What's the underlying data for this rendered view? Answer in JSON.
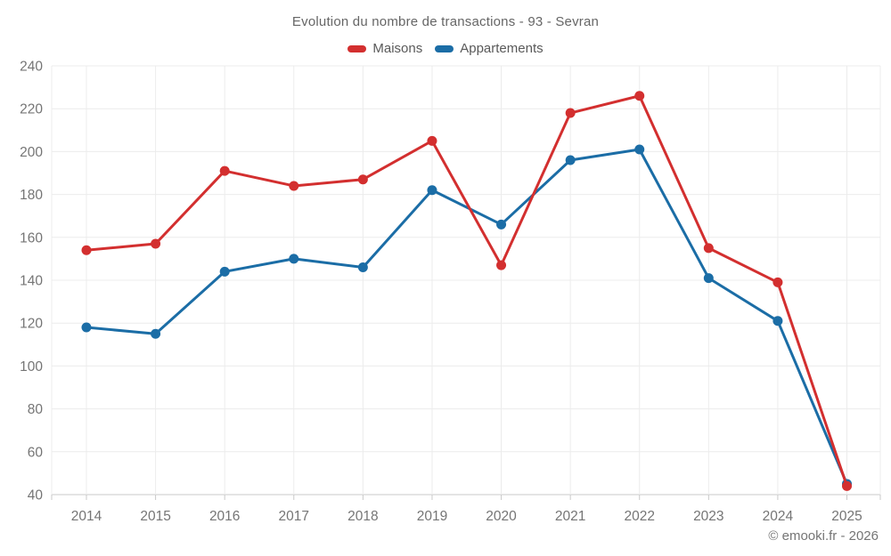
{
  "title": "Evolution du nombre de transactions - 93 - Sevran",
  "footer": "© emooki.fr - 2026",
  "chart_data": {
    "type": "line",
    "title": "Evolution du nombre de transactions - 93 - Sevran",
    "categories": [
      "2014",
      "2015",
      "2016",
      "2017",
      "2018",
      "2019",
      "2020",
      "2021",
      "2022",
      "2023",
      "2024",
      "2025"
    ],
    "series": [
      {
        "name": "Maisons",
        "color": "#d32f2f",
        "values": [
          154,
          157,
          191,
          184,
          187,
          205,
          147,
          218,
          226,
          155,
          139,
          44
        ]
      },
      {
        "name": "Appartements",
        "color": "#1b6da6",
        "values": [
          118,
          115,
          144,
          150,
          146,
          182,
          166,
          196,
          201,
          141,
          121,
          45
        ]
      }
    ],
    "ylim": [
      40,
      240
    ],
    "yticks": [
      40,
      60,
      80,
      100,
      120,
      140,
      160,
      180,
      200,
      220,
      240
    ],
    "grid": true,
    "legend_position": "top",
    "xlabel": "",
    "ylabel": "",
    "annotation": "© emooki.fr - 2026"
  },
  "style": {
    "grid_color": "#ececec",
    "axis_color": "#c9c9c9",
    "tick_color": "#c9c9c9",
    "axis_label_color": "#757575",
    "title_color": "#666666",
    "legend_text_color": "#595959"
  }
}
